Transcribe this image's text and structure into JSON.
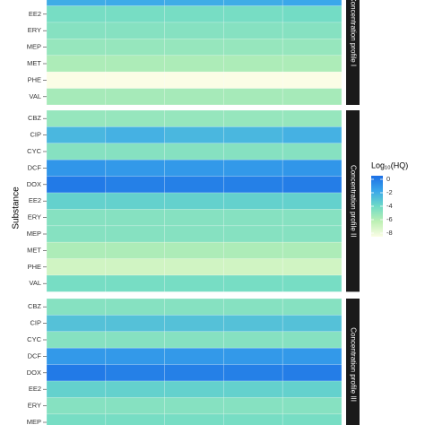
{
  "chart_data": {
    "type": "heatmap",
    "y_label": "Substance",
    "legend": {
      "title": "Log₁₀(HQ)",
      "lim": [
        -8,
        0
      ],
      "ticks": [
        0,
        -2,
        -4,
        -6,
        -8
      ]
    },
    "colorscale": [
      {
        "value": 0,
        "color": "#1c6fe6"
      },
      {
        "value": -2,
        "color": "#3aa7ea"
      },
      {
        "value": -4,
        "color": "#6fdbc6"
      },
      {
        "value": -6,
        "color": "#bdf0b4"
      },
      {
        "value": -8,
        "color": "#fbfde6"
      }
    ],
    "panels": [
      {
        "name": "Concentration profile I",
        "rows": [
          null,
          "EE2",
          "ERY",
          "MEP",
          "MET",
          "PHE",
          "VAL"
        ],
        "values": [
          [
            -2.2,
            -2.1,
            -2.2,
            -2.2,
            -2.0
          ],
          [
            -4.2,
            -4.2,
            -4.2,
            -4.2,
            -4.1
          ],
          [
            -4.6,
            -4.6,
            -4.6,
            -4.6,
            -4.6
          ],
          [
            -5.0,
            -5.0,
            -5.0,
            -5.0,
            -5.0
          ],
          [
            -5.6,
            -5.6,
            -5.6,
            -5.6,
            -5.6
          ],
          [
            -8.0,
            -8.0,
            -8.0,
            -8.0,
            -8.0
          ],
          [
            -5.4,
            -5.4,
            -5.4,
            -5.4,
            -5.4
          ]
        ]
      },
      {
        "name": "Concentration profile II",
        "rows": [
          "CBZ",
          "CIP",
          "CYC",
          "DCF",
          "DOX",
          "EE2",
          "ERY",
          "MEP",
          "MET",
          "PHE",
          "VAL"
        ],
        "values": [
          [
            -5.0,
            -5.0,
            -5.0,
            -5.0,
            -5.0
          ],
          [
            -2.6,
            -2.4,
            -2.6,
            -2.6,
            -2.4
          ],
          [
            -4.6,
            -4.6,
            -4.6,
            -4.6,
            -4.6
          ],
          [
            -1.4,
            -1.5,
            -1.5,
            -1.5,
            -1.4
          ],
          [
            -0.4,
            -0.6,
            -0.6,
            -0.6,
            -0.5
          ],
          [
            -3.6,
            -3.6,
            -3.6,
            -3.6,
            -3.6
          ],
          [
            -4.6,
            -4.6,
            -4.6,
            -4.6,
            -4.6
          ],
          [
            -4.6,
            -4.6,
            -4.6,
            -4.6,
            -4.6
          ],
          [
            -5.6,
            -5.6,
            -5.6,
            -5.6,
            -5.6
          ],
          [
            -6.6,
            -6.6,
            -6.6,
            -6.6,
            -6.6
          ],
          [
            -4.2,
            -4.2,
            -4.2,
            -4.2,
            -4.2
          ]
        ]
      },
      {
        "name": "Concentration profile III",
        "rows": [
          "CBZ",
          "CIP",
          "CYC",
          "DCF",
          "DOX",
          "EE2",
          "ERY",
          "MEP"
        ],
        "values": [
          [
            -4.6,
            -4.6,
            -4.6,
            -4.6,
            -4.6
          ],
          [
            -3.0,
            -3.0,
            -3.0,
            -3.0,
            -3.0
          ],
          [
            -4.6,
            -4.6,
            -4.6,
            -4.6,
            -4.6
          ],
          [
            -1.5,
            -1.5,
            -1.5,
            -1.5,
            -1.5
          ],
          [
            -0.4,
            -0.6,
            -0.6,
            -0.6,
            -0.5
          ],
          [
            -3.6,
            -3.6,
            -3.6,
            -3.6,
            -3.6
          ],
          [
            -4.6,
            -4.6,
            -4.6,
            -4.6,
            -4.6
          ],
          [
            -4.2,
            -4.2,
            -4.2,
            -4.2,
            -4.2
          ]
        ]
      }
    ]
  }
}
